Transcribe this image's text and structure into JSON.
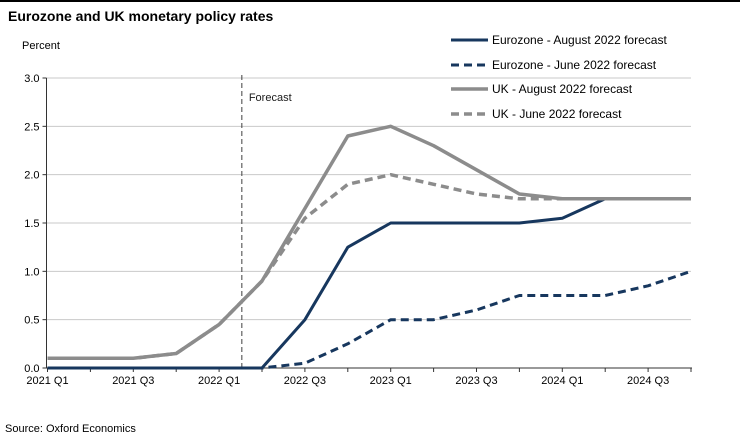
{
  "title": "Eurozone and UK monetary policy rates",
  "source": "Source: Oxford Economics",
  "forecast_label": "Forecast",
  "colors": {
    "eurozone_navy": "#17375E",
    "uk_gray": "#8C8C8C",
    "gridline": "#C9C9C9",
    "axis": "#333333",
    "forecast_line": "#404040"
  },
  "chart_data": {
    "type": "line",
    "title": "Eurozone and UK monetary policy rates",
    "xlabel": "",
    "ylabel": "Percent",
    "ylim": [
      0.0,
      3.0
    ],
    "ytick_step": 0.5,
    "y_tick_labels": [
      "0.0",
      "0.5",
      "1.0",
      "1.5",
      "2.0",
      "2.5",
      "3.0"
    ],
    "grid": "horizontal",
    "legend_position": "top-right",
    "categories": [
      "2021 Q1",
      "2021 Q2",
      "2021 Q3",
      "2021 Q4",
      "2022 Q1",
      "2022 Q2",
      "2022 Q3",
      "2022 Q4",
      "2023 Q1",
      "2023 Q2",
      "2023 Q3",
      "2023 Q4",
      "2024 Q1",
      "2024 Q2",
      "2024 Q3",
      "2024 Q4"
    ],
    "x_tick_labels": [
      "2021 Q1",
      "2021 Q3",
      "2022 Q1",
      "2022 Q3",
      "2023 Q1",
      "2023 Q3",
      "2024 Q1",
      "2024 Q3"
    ],
    "forecast_boundary_x_index": 4.53,
    "series": [
      {
        "name": "Eurozone - August 2022 forecast",
        "style": "solid",
        "color": "#17375E",
        "values": [
          0.0,
          0.0,
          0.0,
          0.0,
          0.0,
          0.0,
          0.5,
          1.25,
          1.5,
          1.5,
          1.5,
          1.5,
          1.55,
          1.75,
          1.75,
          1.75
        ]
      },
      {
        "name": "Eurozone - June 2022 forecast",
        "style": "dashed",
        "color": "#17375E",
        "values": [
          0.0,
          0.0,
          0.0,
          0.0,
          0.0,
          0.0,
          0.05,
          0.25,
          0.5,
          0.5,
          0.6,
          0.75,
          0.75,
          0.75,
          0.85,
          1.0
        ]
      },
      {
        "name": "UK - August 2022 forecast",
        "style": "solid",
        "color": "#8C8C8C",
        "values": [
          0.1,
          0.1,
          0.1,
          0.15,
          0.45,
          0.9,
          1.65,
          2.4,
          2.5,
          2.3,
          2.05,
          1.8,
          1.75,
          1.75,
          1.75,
          1.75
        ]
      },
      {
        "name": "UK - June 2022 forecast",
        "style": "dashed",
        "color": "#8C8C8C",
        "values": [
          0.1,
          0.1,
          0.1,
          0.15,
          0.45,
          0.9,
          1.55,
          1.9,
          2.0,
          1.9,
          1.8,
          1.75,
          1.75,
          1.75,
          1.75,
          1.75
        ]
      }
    ]
  }
}
